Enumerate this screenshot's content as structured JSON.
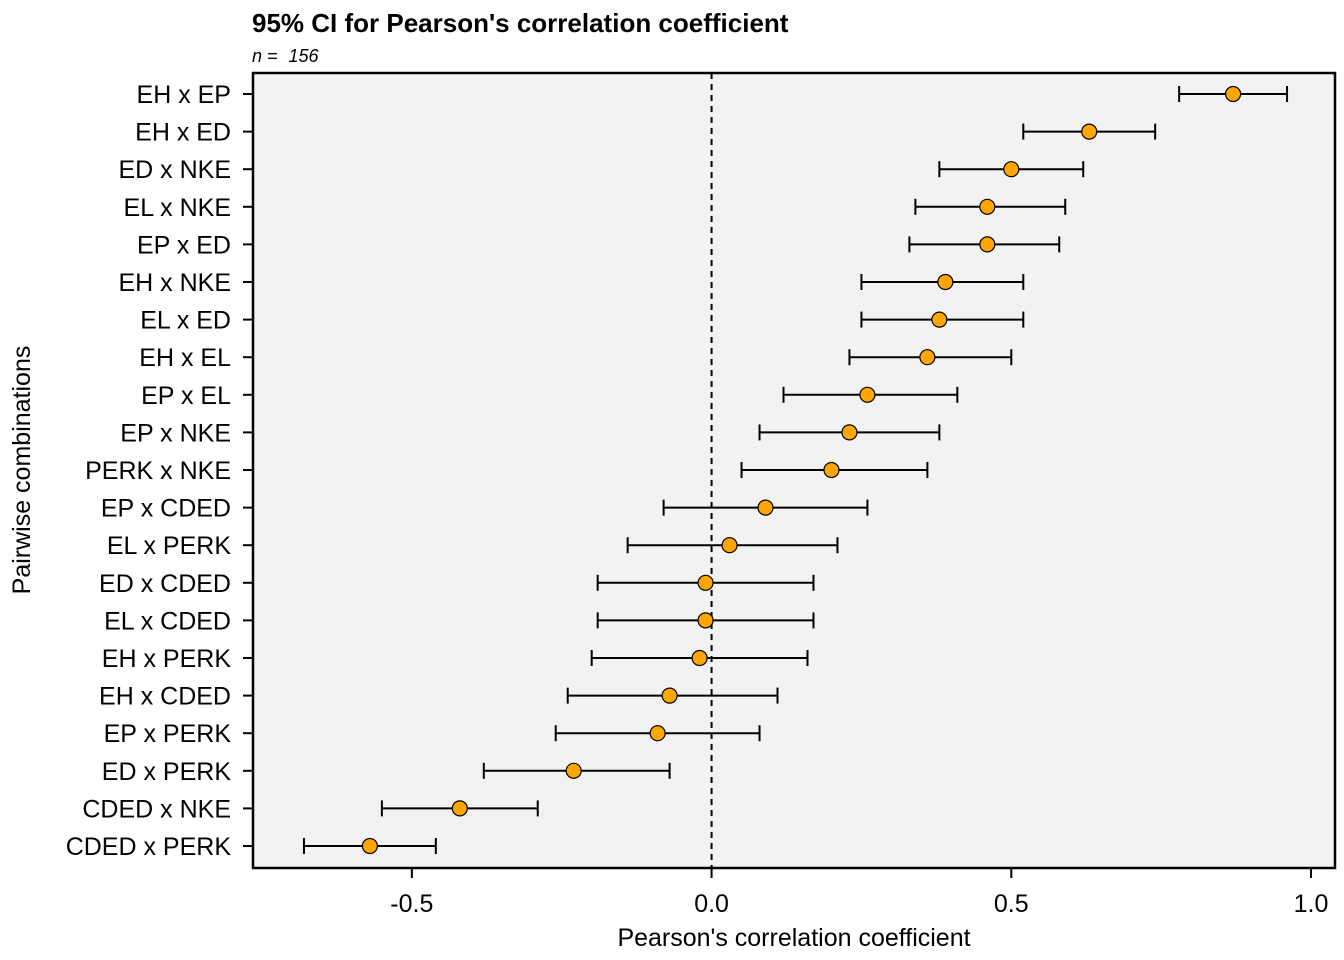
{
  "chart_data": {
    "type": "scatter",
    "title": "95% CI for Pearson's correlation coefficient",
    "subtitle_label": "n = ",
    "subtitle_value": "156",
    "xlabel": "Pearson's correlation coefficient",
    "ylabel": "Pairwise combinations",
    "xlim": [
      -0.765,
      1.04
    ],
    "xticks": [
      -0.5,
      0.0,
      0.5,
      1.0
    ],
    "xtick_labels": [
      "-0.5",
      "0.0",
      "0.5",
      "1.0"
    ],
    "reference_line": 0.0,
    "point_color": "#FFA500",
    "panel_color": "#F2F2F2",
    "grid": false,
    "rows": [
      {
        "label": "EH x EP",
        "estimate": 0.87,
        "lower": 0.78,
        "upper": 0.96
      },
      {
        "label": "EH x ED",
        "estimate": 0.63,
        "lower": 0.52,
        "upper": 0.74
      },
      {
        "label": "ED x NKE",
        "estimate": 0.5,
        "lower": 0.38,
        "upper": 0.62
      },
      {
        "label": "EL x NKE",
        "estimate": 0.46,
        "lower": 0.34,
        "upper": 0.59
      },
      {
        "label": "EP x ED",
        "estimate": 0.46,
        "lower": 0.33,
        "upper": 0.58
      },
      {
        "label": "EH x NKE",
        "estimate": 0.39,
        "lower": 0.25,
        "upper": 0.52
      },
      {
        "label": "EL x ED",
        "estimate": 0.38,
        "lower": 0.25,
        "upper": 0.52
      },
      {
        "label": "EH x EL",
        "estimate": 0.36,
        "lower": 0.23,
        "upper": 0.5
      },
      {
        "label": "EP x EL",
        "estimate": 0.26,
        "lower": 0.12,
        "upper": 0.41
      },
      {
        "label": "EP x NKE",
        "estimate": 0.23,
        "lower": 0.08,
        "upper": 0.38
      },
      {
        "label": "PERK x NKE",
        "estimate": 0.2,
        "lower": 0.05,
        "upper": 0.36
      },
      {
        "label": "EP x CDED",
        "estimate": 0.09,
        "lower": -0.08,
        "upper": 0.26
      },
      {
        "label": "EL x PERK",
        "estimate": 0.03,
        "lower": -0.14,
        "upper": 0.21
      },
      {
        "label": "ED x CDED",
        "estimate": -0.01,
        "lower": -0.19,
        "upper": 0.17
      },
      {
        "label": "EL x CDED",
        "estimate": -0.01,
        "lower": -0.19,
        "upper": 0.17
      },
      {
        "label": "EH x PERK",
        "estimate": -0.02,
        "lower": -0.2,
        "upper": 0.16
      },
      {
        "label": "EH x CDED",
        "estimate": -0.07,
        "lower": -0.24,
        "upper": 0.11
      },
      {
        "label": "EP x PERK",
        "estimate": -0.09,
        "lower": -0.26,
        "upper": 0.08
      },
      {
        "label": "ED x PERK",
        "estimate": -0.23,
        "lower": -0.38,
        "upper": -0.07
      },
      {
        "label": "CDED x NKE",
        "estimate": -0.42,
        "lower": -0.55,
        "upper": -0.29
      },
      {
        "label": "CDED x PERK",
        "estimate": -0.57,
        "lower": -0.68,
        "upper": -0.46
      }
    ]
  }
}
